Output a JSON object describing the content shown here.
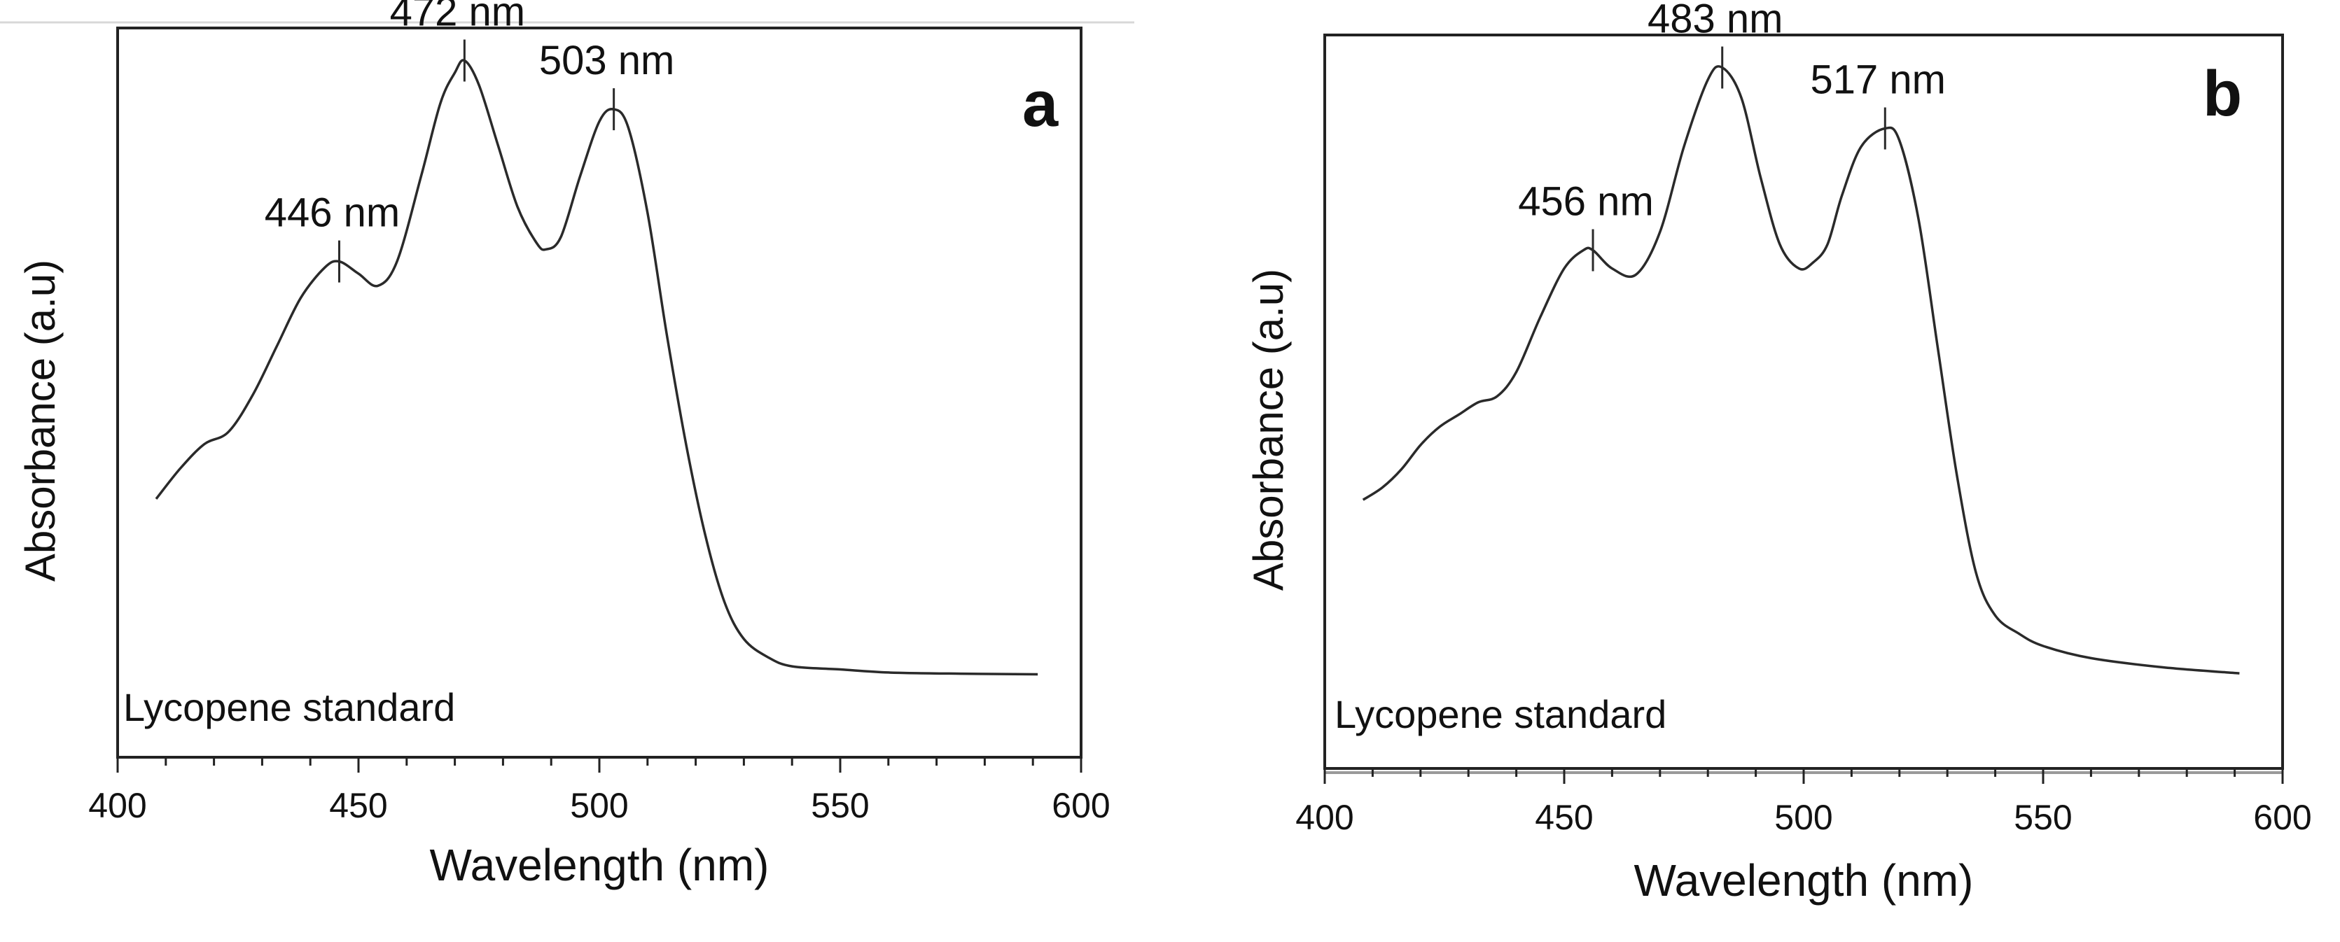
{
  "chart_data": [
    {
      "type": "line",
      "panel": "a",
      "title": "",
      "xlabel": "Wavelength (nm)",
      "ylabel": "Absorbance (a.u)",
      "annotation": "Lycopene standard",
      "xlim": [
        400,
        600
      ],
      "ylim": [
        0,
        1
      ],
      "yticks_shown": false,
      "xticks": [
        {
          "value": 400,
          "label": "400"
        },
        {
          "value": 450,
          "label": "450"
        },
        {
          "value": 500,
          "label": "500"
        },
        {
          "value": 550,
          "label": "550"
        },
        {
          "value": 600,
          "label": "600"
        }
      ],
      "peaks": [
        {
          "x": 446,
          "label": "446 nm"
        },
        {
          "x": 472,
          "label": "472 nm"
        },
        {
          "x": 503,
          "label": "503 nm"
        }
      ],
      "series": [
        {
          "name": "Lycopene standard",
          "x": [
            408,
            413,
            418,
            423,
            428,
            433,
            438,
            443,
            446,
            450,
            454,
            458,
            463,
            467,
            470,
            472,
            475,
            479,
            483,
            487,
            489,
            492,
            496,
            500,
            503,
            506,
            510,
            514,
            518,
            522,
            526,
            530,
            535,
            540,
            550,
            560,
            575,
            591
          ],
          "values": [
            0.33,
            0.38,
            0.42,
            0.44,
            0.5,
            0.58,
            0.66,
            0.71,
            0.72,
            0.7,
            0.68,
            0.72,
            0.86,
            0.98,
            1.03,
            1.05,
            1.01,
            0.91,
            0.81,
            0.75,
            0.74,
            0.76,
            0.86,
            0.95,
            0.97,
            0.94,
            0.8,
            0.6,
            0.42,
            0.27,
            0.16,
            0.1,
            0.07,
            0.055,
            0.05,
            0.045,
            0.043,
            0.042
          ]
        }
      ]
    },
    {
      "type": "line",
      "panel": "b",
      "title": "",
      "xlabel": "Wavelength (nm)",
      "ylabel": "Absorbance (a.u)",
      "annotation": "Lycopene standard",
      "xlim": [
        400,
        600
      ],
      "ylim": [
        0,
        1
      ],
      "yticks_shown": false,
      "xticks": [
        {
          "value": 400,
          "label": "400"
        },
        {
          "value": 450,
          "label": "450"
        },
        {
          "value": 500,
          "label": "500"
        },
        {
          "value": 550,
          "label": "550"
        },
        {
          "value": 600,
          "label": "600"
        }
      ],
      "peaks": [
        {
          "x": 456,
          "label": "456 nm"
        },
        {
          "x": 483,
          "label": "483 nm"
        },
        {
          "x": 517,
          "label": "517 nm"
        }
      ],
      "series": [
        {
          "name": "Lycopene standard",
          "x": [
            408,
            412,
            416,
            420,
            424,
            428,
            432,
            436,
            440,
            445,
            450,
            454,
            456,
            460,
            465,
            470,
            475,
            480,
            483,
            487,
            491,
            495,
            499,
            502,
            505,
            508,
            512,
            517,
            520,
            524,
            528,
            532,
            536,
            540,
            545,
            550,
            560,
            575,
            591
          ],
          "values": [
            0.34,
            0.36,
            0.39,
            0.43,
            0.46,
            0.48,
            0.5,
            0.51,
            0.55,
            0.64,
            0.72,
            0.75,
            0.75,
            0.72,
            0.71,
            0.78,
            0.92,
            1.03,
            1.05,
            1.0,
            0.87,
            0.76,
            0.72,
            0.73,
            0.76,
            0.84,
            0.92,
            0.95,
            0.93,
            0.8,
            0.59,
            0.38,
            0.22,
            0.15,
            0.12,
            0.1,
            0.08,
            0.065,
            0.055
          ]
        }
      ]
    }
  ]
}
